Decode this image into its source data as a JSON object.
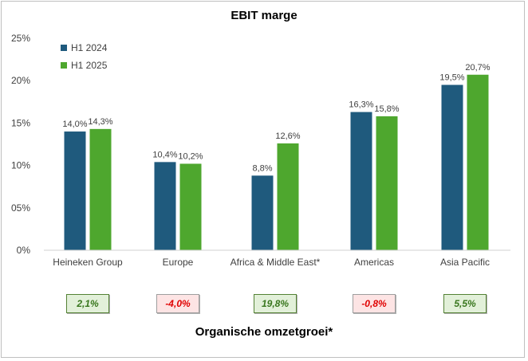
{
  "chart_data": {
    "type": "bar",
    "title": "EBIT marge",
    "categories": [
      "Heineken Group",
      "Europe",
      "Africa & Middle East*",
      "Americas",
      "Asia Pacific"
    ],
    "series": [
      {
        "name": "H1 2024",
        "values": [
          14.0,
          10.4,
          8.8,
          16.3,
          19.5
        ],
        "labels": [
          "14,0%",
          "10,4%",
          "8,8%",
          "16,3%",
          "19,5%"
        ]
      },
      {
        "name": "H1 2025",
        "values": [
          14.3,
          10.2,
          12.6,
          15.8,
          20.7
        ],
        "labels": [
          "14,3%",
          "10,2%",
          "12,6%",
          "15,8%",
          "20,7%"
        ]
      }
    ],
    "ylim": [
      0,
      25
    ],
    "yticks": [
      "0%",
      "05%",
      "10%",
      "15%",
      "20%",
      "25%"
    ],
    "grid": false,
    "legend_position": "top-left",
    "colors": {
      "H1 2024": "#1f5a7d",
      "H1 2025": "#4ea72e"
    }
  },
  "growth": {
    "title": "Organische omzetgroei*",
    "items": [
      {
        "label": "2,1%",
        "value": 2.1
      },
      {
        "label": "-4,0%",
        "value": -4.0
      },
      {
        "label": "19,8%",
        "value": 19.8
      },
      {
        "label": "-0,8%",
        "value": -0.8
      },
      {
        "label": "5,5%",
        "value": 5.5
      }
    ]
  }
}
